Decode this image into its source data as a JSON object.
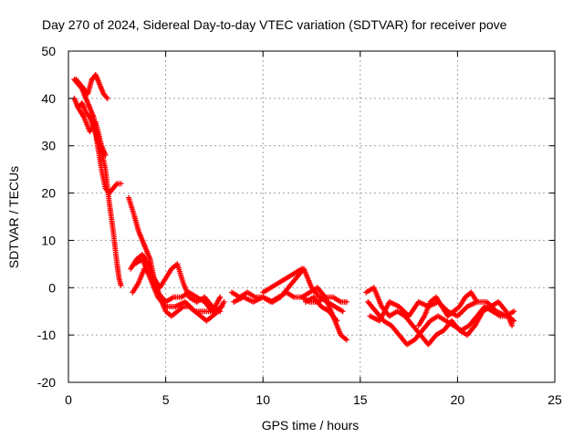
{
  "chart_data": {
    "type": "scatter",
    "title": "Day 270 of 2024, Sidereal Day-to-day VTEC variation (SDTVAR) for receiver pove",
    "xlabel": "GPS time / hours",
    "ylabel": "SDTVAR / TECUs",
    "xlim": [
      0,
      25
    ],
    "ylim": [
      -20,
      50
    ],
    "xticks": [
      0,
      5,
      10,
      15,
      20,
      25
    ],
    "yticks": [
      -20,
      -10,
      0,
      10,
      20,
      30,
      40,
      50
    ],
    "grid": true,
    "marker": "+",
    "color": "#ff0000",
    "series": [
      {
        "name": "SDTVAR",
        "x": [
          0.3,
          0.5,
          0.7,
          0.9,
          1.1,
          1.3,
          1.5,
          1.7,
          1.9,
          2.1,
          2.3,
          2.5,
          2.7
        ],
        "y": [
          44,
          43,
          42,
          40,
          38,
          36,
          30,
          25,
          21,
          20,
          21,
          22,
          22
        ]
      },
      {
        "name": "SDTVAR",
        "x": [
          0.3,
          0.5,
          0.7,
          0.9,
          1.1,
          1.3,
          1.5,
          1.7,
          1.9,
          2.1,
          2.3,
          2.5,
          2.6,
          2.7
        ],
        "y": [
          40,
          38,
          39,
          37,
          36,
          34,
          31,
          29,
          25,
          18,
          12,
          5,
          2,
          0.5
        ]
      },
      {
        "name": "SDTVAR",
        "x": [
          0.4,
          0.6,
          0.8,
          1.0,
          1.2,
          1.4,
          1.6,
          1.8,
          2.0
        ],
        "y": [
          44,
          43,
          42,
          41,
          44,
          45,
          43,
          41,
          40
        ]
      },
      {
        "name": "SDTVAR",
        "x": [
          0.5,
          0.8,
          1.1,
          1.4,
          1.7,
          1.9
        ],
        "y": [
          38,
          36,
          33,
          35,
          30,
          28
        ]
      },
      {
        "name": "SDTVAR",
        "x": [
          3.1,
          3.4,
          3.6,
          3.8,
          4.0,
          4.2,
          4.4,
          4.7,
          5.0,
          5.3,
          5.6,
          5.9,
          6.2,
          6.5,
          6.8,
          7.1,
          7.4,
          7.7,
          8.0
        ],
        "y": [
          19,
          15,
          12,
          10,
          8,
          6,
          2,
          -2,
          -5,
          -6,
          -5,
          -4,
          -4,
          -5,
          -6,
          -7,
          -6,
          -5,
          -3
        ]
      },
      {
        "name": "SDTVAR",
        "x": [
          3.2,
          3.5,
          3.8,
          4.1,
          4.4,
          4.7,
          5.0,
          5.3,
          5.6,
          5.9,
          6.2,
          6.6,
          7.0,
          7.4,
          7.8
        ],
        "y": [
          4,
          6,
          7,
          5,
          2,
          0,
          2,
          4,
          5,
          1,
          -2,
          -3,
          -2,
          -4,
          -5
        ]
      },
      {
        "name": "SDTVAR",
        "x": [
          3.3,
          3.6,
          3.9,
          4.2,
          4.6,
          5.0,
          5.4,
          5.8,
          6.2,
          6.6,
          7.0,
          7.4,
          7.8
        ],
        "y": [
          -1,
          1,
          4,
          3,
          -1,
          -3,
          -2,
          -2,
          -1,
          -2,
          -3,
          -5,
          -2
        ]
      },
      {
        "name": "SDTVAR",
        "x": [
          3.4,
          3.8,
          4.2,
          4.6,
          5.0,
          5.5,
          6.0,
          6.5,
          7.0,
          7.5,
          7.9
        ],
        "y": [
          5,
          6,
          2,
          -2,
          -4,
          -4,
          -3,
          -5,
          -5,
          -5,
          -4
        ]
      },
      {
        "name": "SDTVAR",
        "x": [
          8.4,
          8.8,
          9.2,
          9.6,
          10.0,
          10.4,
          10.8,
          11.2,
          11.6,
          12.0,
          12.4,
          12.8,
          13.2,
          13.6,
          14.0,
          14.3
        ],
        "y": [
          -1,
          -2,
          -1,
          -2,
          -2,
          -3,
          -2,
          -1,
          -2,
          -2,
          -3,
          -3,
          -2,
          -2,
          -3,
          -3
        ]
      },
      {
        "name": "SDTVAR",
        "x": [
          8.5,
          9.0,
          9.5,
          10.0,
          10.5,
          10.9,
          11.3,
          11.7,
          12.1,
          12.5,
          12.9,
          13.3,
          13.7,
          14.1
        ],
        "y": [
          -3,
          -2,
          -3,
          -2,
          -3,
          -2,
          0,
          2,
          4,
          0,
          -2,
          -3,
          -4,
          -5
        ]
      },
      {
        "name": "SDTVAR",
        "x": [
          10.0,
          10.4,
          10.8,
          11.2,
          11.6,
          12.0
        ],
        "y": [
          -1,
          0,
          1,
          2,
          3,
          4
        ]
      },
      {
        "name": "SDTVAR",
        "x": [
          12.0,
          12.4,
          12.8,
          13.2,
          13.6,
          14.0,
          14.3
        ],
        "y": [
          -2,
          -1,
          0,
          -2,
          -6,
          -10,
          -11
        ]
      },
      {
        "name": "SDTVAR",
        "x": [
          12.2,
          12.6,
          13.0,
          13.4,
          13.8
        ],
        "y": [
          -3,
          -2,
          -4,
          -5,
          -7
        ]
      },
      {
        "name": "SDTVAR",
        "x": [
          15.4,
          15.8,
          16.2,
          16.6,
          17.0,
          17.4,
          17.8,
          18.2,
          18.6,
          19.0,
          19.4,
          19.8,
          20.2,
          20.6,
          21.0,
          21.4,
          21.8,
          22.2,
          22.6,
          22.9
        ],
        "y": [
          -3,
          -5,
          -7,
          -8,
          -10,
          -12,
          -11,
          -9,
          -7,
          -6,
          -7,
          -8,
          -9,
          -8,
          -6,
          -4,
          -5,
          -6,
          -6,
          -7
        ]
      },
      {
        "name": "SDTVAR",
        "x": [
          15.3,
          15.7,
          16.1,
          16.5,
          16.9,
          17.3,
          17.7,
          18.1,
          18.5,
          18.9,
          19.3,
          19.7,
          20.1,
          20.5,
          20.9,
          21.3,
          21.7,
          22.1,
          22.5,
          22.8
        ],
        "y": [
          -1,
          0,
          -4,
          -6,
          -5,
          -6,
          -8,
          -10,
          -12,
          -10,
          -9,
          -7,
          -9,
          -10,
          -8,
          -5,
          -4,
          -3,
          -5,
          -8
        ]
      },
      {
        "name": "SDTVAR",
        "x": [
          15.5,
          16.0,
          16.5,
          17.0,
          17.5,
          18.0,
          18.5,
          19.0,
          19.5,
          20.0,
          20.5,
          21.0,
          21.5,
          22.0,
          22.5,
          22.9
        ],
        "y": [
          -6,
          -7,
          -3,
          -4,
          -6,
          -3,
          -4,
          -3,
          -5,
          -6,
          -4,
          -3,
          -3,
          -5,
          -6,
          -5
        ]
      },
      {
        "name": "SDTVAR",
        "x": [
          18.0,
          18.3,
          18.6,
          18.9,
          19.2,
          19.5,
          19.8,
          20.1,
          20.4,
          20.7,
          21.0
        ],
        "y": [
          -8,
          -6,
          -3,
          -2,
          -4,
          -6,
          -5,
          -4,
          -2,
          -1,
          -3
        ]
      }
    ]
  }
}
